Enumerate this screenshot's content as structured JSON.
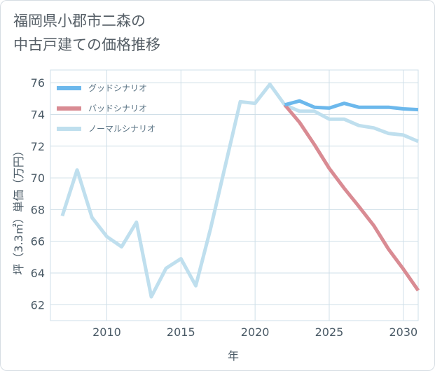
{
  "title": {
    "line1": "福岡県小郡市二森の",
    "line2": "中古戸建ての価格推移"
  },
  "colors": {
    "good": "#6cb8ec",
    "bad": "#d98b93",
    "normal": "#bfdfee",
    "grid": "#cfdfe8",
    "axis_text": "#4a5a66"
  },
  "chart_data": {
    "type": "line",
    "xlabel": "年",
    "ylabel": "坪（3.3㎡）単価（万円）",
    "xlim": [
      2006.2,
      2031
    ],
    "ylim": [
      61,
      76.8
    ],
    "xticks": [
      2010,
      2015,
      2020,
      2025,
      2030
    ],
    "yticks": [
      62,
      64,
      66,
      68,
      70,
      72,
      74,
      76
    ],
    "grid": true,
    "legend_position": "top-left",
    "series": [
      {
        "name": "グッドシナリオ",
        "color": "#6cb8ec",
        "x": [
          2022,
          2023,
          2024,
          2025,
          2026,
          2027,
          2028,
          2029,
          2030,
          2031
        ],
        "values": [
          74.6,
          74.85,
          74.45,
          74.4,
          74.7,
          74.45,
          74.45,
          74.45,
          74.35,
          74.3
        ]
      },
      {
        "name": "バッドシナリオ",
        "color": "#d98b93",
        "x": [
          2022,
          2023,
          2024,
          2025,
          2026,
          2027,
          2028,
          2029,
          2030,
          2031
        ],
        "values": [
          74.6,
          73.5,
          72.1,
          70.6,
          69.35,
          68.2,
          67.0,
          65.5,
          64.25,
          62.9
        ]
      },
      {
        "name": "ノーマルシナリオ",
        "color": "#bfdfee",
        "x": [
          2007,
          2008,
          2009,
          2010,
          2011,
          2012,
          2013,
          2014,
          2015,
          2016,
          2017,
          2018,
          2019,
          2020,
          2021,
          2022,
          2023,
          2024,
          2025,
          2026,
          2027,
          2028,
          2029,
          2030,
          2031
        ],
        "values": [
          67.6,
          70.5,
          67.5,
          66.3,
          65.65,
          67.2,
          62.5,
          64.3,
          64.9,
          63.2,
          66.8,
          70.8,
          74.8,
          74.7,
          75.9,
          74.6,
          74.2,
          74.2,
          73.7,
          73.7,
          73.3,
          73.15,
          72.8,
          72.7,
          72.3
        ]
      }
    ]
  }
}
